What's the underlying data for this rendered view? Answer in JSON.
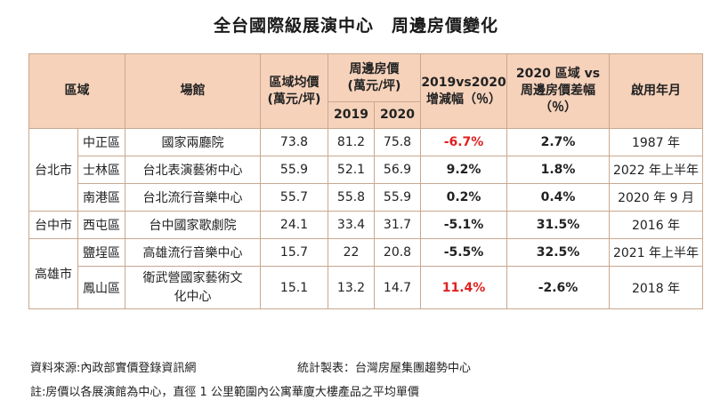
{
  "title": "全台國際級展演中心　周邊房價變化",
  "header": {
    "region": "區域",
    "venue": "場館",
    "region_avg_l1": "區域均價",
    "region_avg_l2": "(萬元/坪)",
    "nearby_l1": "周邊房價",
    "nearby_l2": "(萬元/坪)",
    "y2019": "2019",
    "y2020": "2020",
    "change_l1": "2019vs2020",
    "change_l2": "增減幅（％）",
    "diff_l1": "2020 區域 vs",
    "diff_l2": "周邊房價差幅",
    "diff_l3": "（％）",
    "opening": "啟用年月"
  },
  "cities": {
    "taipei": "台北市",
    "taichung": "台中市",
    "kaohsiung": "高雄市"
  },
  "rows": [
    {
      "district": "中正區",
      "venue": "國家兩廳院",
      "avg": "73.8",
      "p2019": "81.2",
      "p2020": "75.8",
      "change": "-6.7%",
      "diff": "2.7%",
      "open": "1987 年"
    },
    {
      "district": "士林區",
      "venue": "台北表演藝術中心",
      "avg": "55.9",
      "p2019": "52.1",
      "p2020": "56.9",
      "change": "9.2%",
      "diff": "1.8%",
      "open": "2022 年上半年"
    },
    {
      "district": "南港區",
      "venue": "台北流行音樂中心",
      "avg": "55.7",
      "p2019": "55.8",
      "p2020": "55.9",
      "change": "0.2%",
      "diff": "0.4%",
      "open": "2020 年 9 月"
    },
    {
      "district": "西屯區",
      "venue": "台中國家歌劇院",
      "avg": "24.1",
      "p2019": "33.4",
      "p2020": "31.7",
      "change": "-5.1%",
      "diff": "31.5%",
      "open": "2016 年"
    },
    {
      "district": "鹽埕區",
      "venue": "高雄流行音樂中心",
      "avg": "15.7",
      "p2019": "22",
      "p2020": "20.8",
      "change": "-5.5%",
      "diff": "32.5%",
      "open": "2021 年上半年"
    },
    {
      "district": "鳳山區",
      "venue_l1": "衛武營國家藝術文",
      "venue_l2": "化中心",
      "avg": "15.1",
      "p2019": "13.2",
      "p2020": "14.7",
      "change": "11.4%",
      "diff": "-2.6%",
      "open": "2018 年"
    }
  ],
  "colors": {
    "header_bg": "#f6d2bb",
    "highlight_red": "#e02020",
    "border": "#c9a88f"
  },
  "footer": {
    "source": "資料來源:內政部實價登錄資訊網",
    "compiled": "統計製表：台灣房屋集團趨勢中心",
    "note": "註:房價以各展演館為中心，直徑 1 公里範圍內公寓華廈大樓產品之平均單價"
  }
}
